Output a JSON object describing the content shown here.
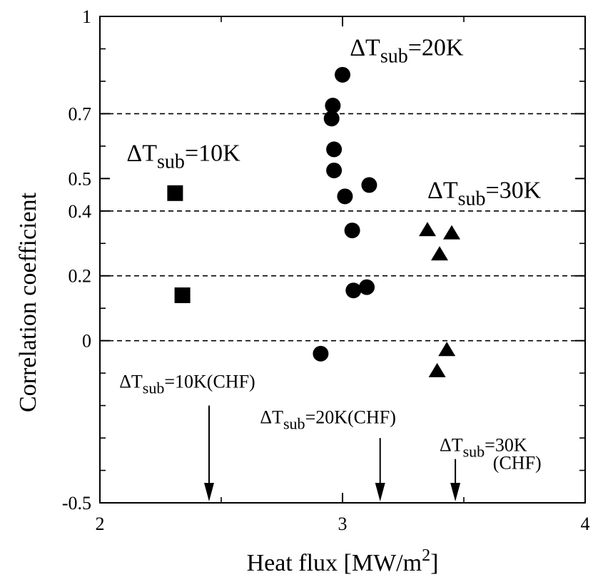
{
  "chart_data": {
    "type": "scatter",
    "xlabel": {
      "main": "Heat flux [MW/m",
      "sup": "2",
      "end": "]"
    },
    "ylabel": "Correlation coefficient",
    "xlim": [
      2,
      4
    ],
    "ylim": [
      -0.5,
      1
    ],
    "x_ticks": [
      {
        "value": 2,
        "label": "2"
      },
      {
        "value": 3,
        "label": "3"
      },
      {
        "value": 4,
        "label": "4"
      }
    ],
    "y_ticks": [
      {
        "value": -0.5,
        "label": "-0.5"
      },
      {
        "value": 0,
        "label": "0"
      },
      {
        "value": 0.2,
        "label": "0.2"
      },
      {
        "value": 0.4,
        "label": "0.4"
      },
      {
        "value": 0.5,
        "label": "0.5"
      },
      {
        "value": 0.7,
        "label": "0.7"
      },
      {
        "value": 1,
        "label": "1"
      }
    ],
    "y_minor_ticks": [
      -0.4,
      -0.3,
      -0.2,
      -0.1,
      0.1,
      0.3,
      0.6,
      0.8,
      0.9
    ],
    "x_minor_ticks": [
      2.5,
      3.5
    ],
    "dashed_gridlines_y": [
      0,
      0.2,
      0.4,
      0.7
    ],
    "series": [
      {
        "marker": "square",
        "points": [
          {
            "x": 2.31,
            "y": 0.455
          },
          {
            "x": 2.34,
            "y": 0.14
          }
        ]
      },
      {
        "marker": "circle",
        "points": [
          {
            "x": 3.0,
            "y": 0.82
          },
          {
            "x": 2.96,
            "y": 0.725
          },
          {
            "x": 2.955,
            "y": 0.685
          },
          {
            "x": 2.965,
            "y": 0.59
          },
          {
            "x": 2.965,
            "y": 0.525
          },
          {
            "x": 3.01,
            "y": 0.445
          },
          {
            "x": 3.11,
            "y": 0.48
          },
          {
            "x": 3.04,
            "y": 0.34
          },
          {
            "x": 3.045,
            "y": 0.155
          },
          {
            "x": 3.1,
            "y": 0.165
          },
          {
            "x": 2.91,
            "y": -0.04
          }
        ]
      },
      {
        "marker": "triangle",
        "points": [
          {
            "x": 3.35,
            "y": 0.34
          },
          {
            "x": 3.45,
            "y": 0.33
          },
          {
            "x": 3.4,
            "y": 0.265
          },
          {
            "x": 3.43,
            "y": -0.03
          },
          {
            "x": 3.39,
            "y": -0.095
          }
        ]
      }
    ],
    "annotations": [
      {
        "id": "label-10k",
        "pre": "ΔT",
        "sub": "sub",
        "post": "=10K",
        "x": 2.11,
        "y": 0.555,
        "size": "big"
      },
      {
        "id": "label-20k",
        "pre": "ΔT",
        "sub": "sub",
        "post": "=20K",
        "x": 3.03,
        "y": 0.88,
        "size": "big"
      },
      {
        "id": "label-30k",
        "pre": "ΔT",
        "sub": "sub",
        "post": "=30K",
        "x": 3.35,
        "y": 0.44,
        "size": "big"
      },
      {
        "id": "label-10k-chf",
        "pre": "ΔT",
        "sub": "sub",
        "post": "=10K(CHF)",
        "x": 2.08,
        "y": -0.145,
        "size": "small"
      },
      {
        "id": "label-20k-chf",
        "pre": "ΔT",
        "sub": "sub",
        "post": "=20K(CHF)",
        "x": 2.66,
        "y": -0.255,
        "size": "small"
      },
      {
        "id": "label-30k-chf",
        "pre": "ΔT",
        "sub": "sub",
        "post": "=30K",
        "x": 3.4,
        "y": -0.34,
        "size": "small"
      },
      {
        "id": "label-30k-chf-2",
        "pre": "",
        "sub": "",
        "post": "(CHF)",
        "x": 3.62,
        "y": -0.395,
        "size": "small"
      }
    ],
    "arrows": [
      {
        "id": "arrow-10k-chf",
        "x": 2.45,
        "y_from": -0.2
      },
      {
        "id": "arrow-20k-chf",
        "x": 3.155,
        "y_from": -0.3
      },
      {
        "id": "arrow-30k-chf",
        "x": 3.465,
        "y_from": -0.365
      }
    ]
  }
}
